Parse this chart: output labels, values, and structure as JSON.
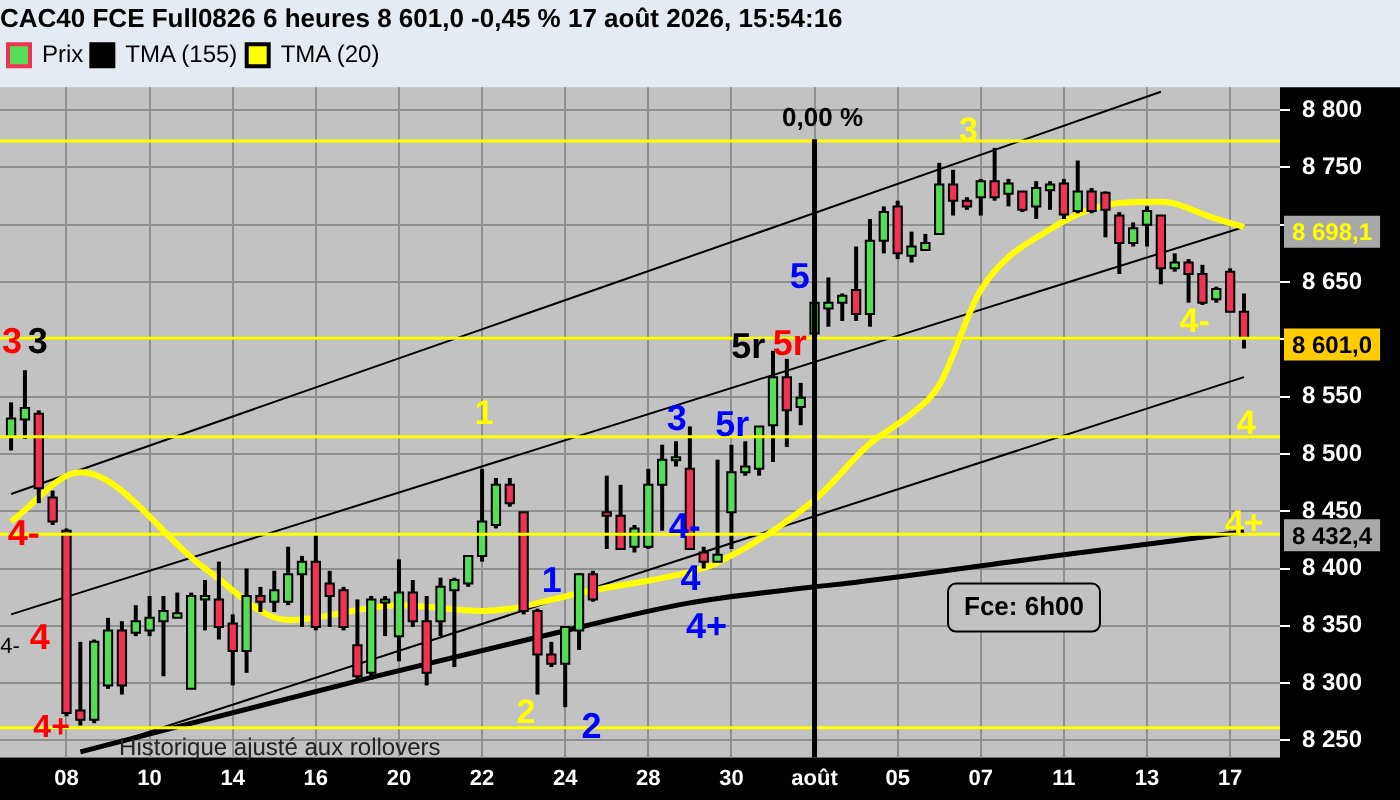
{
  "chart_data": {
    "type": "candlestick",
    "title": "CAC40 FCE Full0826 6 heures 8 601,0 -0,45 % 17 août 2026, 15:54:16",
    "categories": [
      null,
      null,
      null,
      null,
      "08",
      null,
      null,
      null,
      null,
      null,
      "10",
      null,
      null,
      null,
      null,
      null,
      "14",
      null,
      null,
      null,
      null,
      null,
      "16",
      null,
      null,
      null,
      null,
      null,
      "20",
      null,
      null,
      null,
      null,
      null,
      "22",
      null,
      null,
      null,
      null,
      null,
      "24",
      null,
      null,
      null,
      null,
      null,
      "28",
      null,
      null,
      null,
      null,
      null,
      "30",
      null,
      null,
      null,
      null,
      null,
      "août",
      null,
      null,
      null,
      null,
      null,
      "05",
      null,
      null,
      null,
      null,
      null,
      "07",
      null,
      null,
      null,
      null,
      null,
      "11",
      null,
      null,
      null,
      null,
      null,
      "13",
      null,
      null,
      null,
      null,
      null,
      "17",
      null
    ],
    "series": [
      {
        "name": "Prix",
        "ohlc": [
          [
            8515,
            8545,
            8503,
            8531
          ],
          [
            8530,
            8573,
            8513,
            8540
          ],
          [
            8535,
            8538,
            8457,
            8470
          ],
          [
            8462,
            8468,
            8438,
            8441
          ],
          [
            8433,
            8435,
            8271,
            8274
          ],
          [
            8276,
            8336,
            8263,
            8268
          ],
          [
            8268,
            8338,
            8265,
            8336
          ],
          [
            8298,
            8357,
            8295,
            8346
          ],
          [
            8346,
            8354,
            8290,
            8298
          ],
          [
            8344,
            8368,
            8341,
            8354
          ],
          [
            8346,
            8376,
            8341,
            8357
          ],
          [
            8354,
            8376,
            8306,
            8363
          ],
          [
            8357,
            8379,
            8357,
            8361
          ],
          [
            8295,
            8379,
            8295,
            8376
          ],
          [
            8373,
            8390,
            8346,
            8376
          ],
          [
            8373,
            8406,
            8338,
            8349
          ],
          [
            8352,
            8360,
            8298,
            8328
          ],
          [
            8328,
            8400,
            8309,
            8376
          ],
          [
            8376,
            8384,
            8362,
            8371
          ],
          [
            8371,
            8398,
            8362,
            8381
          ],
          [
            8371,
            8419,
            8368,
            8395
          ],
          [
            8395,
            8411,
            8349,
            8406
          ],
          [
            8406,
            8430,
            8346,
            8349
          ],
          [
            8387,
            8398,
            8349,
            8376
          ],
          [
            8381,
            8384,
            8346,
            8349
          ],
          [
            8333,
            8373,
            8303,
            8306
          ],
          [
            8309,
            8376,
            8303,
            8373
          ],
          [
            8371,
            8376,
            8341,
            8373
          ],
          [
            8341,
            8408,
            8319,
            8379
          ],
          [
            8379,
            8390,
            8349,
            8354
          ],
          [
            8354,
            8376,
            8298,
            8309
          ],
          [
            8354,
            8392,
            8341,
            8384
          ],
          [
            8381,
            8392,
            8314,
            8390
          ],
          [
            8387,
            8411,
            8384,
            8411
          ],
          [
            8411,
            8487,
            8406,
            8441
          ],
          [
            8438,
            8479,
            8435,
            8473
          ],
          [
            8473,
            8479,
            8454,
            8457
          ],
          [
            8449,
            8449,
            8360,
            8363
          ],
          [
            8363,
            8365,
            8290,
            8325
          ],
          [
            8325,
            8336,
            8314,
            8317
          ],
          [
            8317,
            8349,
            8279,
            8349
          ],
          [
            8346,
            8396,
            8329,
            8395
          ],
          [
            8395,
            8398,
            8371,
            8373
          ],
          [
            8449,
            8481,
            8417,
            8446
          ],
          [
            8446,
            8473,
            8417,
            8417
          ],
          [
            8419,
            8438,
            8414,
            8435
          ],
          [
            8419,
            8487,
            8417,
            8473
          ],
          [
            8473,
            8508,
            8433,
            8495
          ],
          [
            8495,
            8511,
            8489,
            8497
          ],
          [
            8487,
            8524,
            8417,
            8417
          ],
          [
            8414,
            8419,
            8400,
            8406
          ],
          [
            8406,
            8495,
            8406,
            8412
          ],
          [
            8449,
            8508,
            8417,
            8484
          ],
          [
            8484,
            8511,
            8481,
            8489
          ],
          [
            8487,
            8524,
            8481,
            8524
          ],
          [
            8525,
            8590,
            8493,
            8567
          ],
          [
            8567,
            8583,
            8506,
            8538
          ],
          [
            8541,
            8562,
            8525,
            8549
          ],
          [
            8605,
            8635,
            8560,
            8632
          ],
          [
            8627,
            8654,
            8611,
            8632
          ],
          [
            8632,
            8640,
            8616,
            8638
          ],
          [
            8643,
            8681,
            8616,
            8622
          ],
          [
            8622,
            8705,
            8611,
            8686
          ],
          [
            8686,
            8716,
            8675,
            8711
          ],
          [
            8716,
            8721,
            8670,
            8675
          ],
          [
            8673,
            8694,
            8667,
            8681
          ],
          [
            8678,
            8692,
            8678,
            8684
          ],
          [
            8692,
            8754,
            8692,
            8735
          ],
          [
            8735,
            8748,
            8708,
            8721
          ],
          [
            8721,
            8724,
            8713,
            8716
          ],
          [
            8724,
            8740,
            8708,
            8738
          ],
          [
            8738,
            8767,
            8721,
            8724
          ],
          [
            8727,
            8740,
            8716,
            8736
          ],
          [
            8729,
            8729,
            8711,
            8713
          ],
          [
            8716,
            8738,
            8705,
            8732
          ],
          [
            8730,
            8738,
            8713,
            8735
          ],
          [
            8736,
            8740,
            8705,
            8709
          ],
          [
            8712,
            8756,
            8710,
            8729
          ],
          [
            8729,
            8732,
            8710,
            8712
          ],
          [
            8728,
            8729,
            8689,
            8713
          ],
          [
            8708,
            8711,
            8657,
            8684
          ],
          [
            8684,
            8702,
            8681,
            8697
          ],
          [
            8700,
            8716,
            8681,
            8712
          ],
          [
            8708,
            8708,
            8648,
            8662
          ],
          [
            8662,
            8675,
            8659,
            8667
          ],
          [
            8667,
            8670,
            8632,
            8657
          ],
          [
            8657,
            8665,
            8630,
            8632
          ],
          [
            8635,
            8646,
            8632,
            8644
          ],
          [
            8659,
            8662,
            8624,
            8624
          ],
          [
            8624,
            8640,
            8592,
            8601
          ]
        ],
        "colors": [
          "#55dd55",
          "#55dd55",
          "#ee3355",
          "#ee3355",
          "#ee3355",
          "#ee3355",
          "#55dd55",
          "#55dd55",
          "#ee3355",
          "#55dd55",
          "#55dd55",
          "#55dd55",
          "#55dd55",
          "#55dd55",
          "#55dd55",
          "#ee3355",
          "#ee3355",
          "#55dd55",
          "#ee3355",
          "#55dd55",
          "#55dd55",
          "#55dd55",
          "#ee3355",
          "#ee3355",
          "#ee3355",
          "#ee3355",
          "#55dd55",
          "#55dd55",
          "#55dd55",
          "#ee3355",
          "#ee3355",
          "#55dd55",
          "#55dd55",
          "#55dd55",
          "#55dd55",
          "#55dd55",
          "#ee3355",
          "#ee3355",
          "#ee3355",
          "#ee3355",
          "#55dd55",
          "#55dd55",
          "#ee3355",
          "#ee3355",
          "#ee3355",
          "#55dd55",
          "#55dd55",
          "#55dd55",
          "#55dd55",
          "#ee3355",
          "#ee3355",
          "#55dd55",
          "#55dd55",
          "#55dd55",
          "#55dd55",
          "#55dd55",
          "#ee3355",
          "#55dd55",
          "#55dd55",
          "#55dd55",
          "#55dd55",
          "#ee3355",
          "#55dd55",
          "#55dd55",
          "#ee3355",
          "#55dd55",
          "#55dd55",
          "#55dd55",
          "#ee3355",
          "#ee3355",
          "#55dd55",
          "#ee3355",
          "#55dd55",
          "#ee3355",
          "#55dd55",
          "#55dd55",
          "#ee3355",
          "#55dd55",
          "#ee3355",
          "#ee3355",
          "#ee3355",
          "#55dd55",
          "#55dd55",
          "#ee3355",
          "#55dd55",
          "#ee3355",
          "#ee3355",
          "#55dd55",
          "#ee3355",
          "#ee3355"
        ]
      },
      {
        "name": "TMA (155)",
        "type": "line",
        "color": "#000000",
        "values": [
          null,
          null,
          null,
          null,
          null,
          8240,
          null,
          null,
          null,
          null,
          null,
          null,
          null,
          null,
          null,
          null,
          null,
          null,
          null,
          null,
          null,
          null,
          null,
          null,
          null,
          null,
          8305,
          null,
          null,
          null,
          null,
          null,
          null,
          null,
          null,
          null,
          null,
          null,
          8340,
          null,
          null,
          null,
          null,
          null,
          null,
          null,
          null,
          null,
          null,
          8370,
          null,
          null,
          null,
          null,
          null,
          null,
          null,
          null,
          8384,
          null,
          null,
          8388,
          null,
          null,
          null,
          null,
          null,
          null,
          null,
          null,
          null,
          null,
          null,
          null,
          null,
          null,
          8412,
          null,
          null,
          null,
          null,
          null,
          null,
          null,
          null,
          null,
          null,
          null,
          null,
          8432
        ]
      },
      {
        "name": "TMA (20)",
        "type": "line",
        "color": "#ffff00",
        "values": [
          8441,
          null,
          null,
          null,
          null,
          8484,
          null,
          null,
          null,
          null,
          null,
          null,
          null,
          null,
          8400,
          null,
          null,
          null,
          null,
          null,
          8355,
          null,
          null,
          null,
          null,
          null,
          null,
          null,
          8368,
          null,
          null,
          null,
          null,
          null,
          8363,
          null,
          null,
          null,
          null,
          null,
          null,
          null,
          8381,
          null,
          null,
          null,
          null,
          null,
          null,
          8397,
          null,
          8405,
          null,
          null,
          null,
          null,
          null,
          null,
          8460,
          null,
          null,
          null,
          8509,
          null,
          null,
          8535,
          null,
          8560,
          null,
          null,
          8643,
          null,
          null,
          null,
          null,
          8696,
          null,
          null,
          null,
          null,
          8719,
          null,
          null,
          8720,
          null,
          null,
          null,
          8705,
          null,
          8698
        ]
      },
      {
        "type": "line",
        "color": "#000000",
        "values": [
          8465,
          null,
          null,
          null,
          null,
          null,
          null,
          null,
          null,
          null,
          null,
          null,
          null,
          null,
          null,
          null,
          null,
          null,
          null,
          null,
          null,
          null,
          null,
          null,
          null,
          null,
          null,
          null,
          null,
          null,
          null,
          null,
          null,
          null,
          null,
          null,
          null,
          null,
          null,
          null,
          null,
          null,
          null,
          null,
          null,
          null,
          null,
          null,
          null,
          null,
          null,
          null,
          null,
          null,
          null,
          null,
          null,
          null,
          null,
          null,
          null,
          null,
          null,
          null,
          null,
          null,
          null,
          null,
          null,
          null,
          null,
          null,
          null,
          null,
          null,
          null,
          null,
          null,
          null,
          null,
          null,
          null,
          null,
          8816,
          null,
          null,
          null,
          null,
          null,
          null
        ]
      },
      {
        "type": "line",
        "color": "#000000",
        "values": [
          8360,
          null,
          null,
          null,
          null,
          null,
          null,
          null,
          null,
          null,
          null,
          null,
          null,
          null,
          null,
          null,
          null,
          null,
          null,
          null,
          null,
          null,
          null,
          null,
          null,
          null,
          null,
          null,
          null,
          null,
          null,
          null,
          null,
          null,
          null,
          null,
          null,
          null,
          null,
          null,
          null,
          null,
          null,
          null,
          null,
          null,
          null,
          null,
          null,
          null,
          null,
          null,
          null,
          null,
          null,
          null,
          null,
          null,
          null,
          null,
          null,
          null,
          null,
          null,
          null,
          null,
          null,
          null,
          null,
          null,
          null,
          null,
          null,
          null,
          null,
          null,
          null,
          null,
          null,
          null,
          null,
          null,
          null,
          null,
          null,
          null,
          null,
          null,
          null,
          8698
        ]
      },
      {
        "type": "line",
        "color": "#000000",
        "values": [
          null,
          null,
          null,
          null,
          null,
          null,
          8242,
          null,
          null,
          null,
          null,
          null,
          null,
          null,
          null,
          null,
          null,
          null,
          null,
          null,
          null,
          null,
          null,
          null,
          null,
          null,
          null,
          null,
          null,
          null,
          null,
          null,
          null,
          null,
          null,
          null,
          null,
          null,
          null,
          null,
          null,
          null,
          null,
          null,
          null,
          null,
          null,
          null,
          null,
          null,
          null,
          null,
          null,
          null,
          null,
          null,
          null,
          null,
          null,
          null,
          null,
          null,
          null,
          null,
          null,
          null,
          null,
          null,
          null,
          null,
          null,
          null,
          null,
          null,
          null,
          null,
          null,
          null,
          null,
          null,
          null,
          null,
          null,
          null,
          null,
          null,
          null,
          null,
          null,
          8567
        ]
      }
    ],
    "ylim": [
      8235,
      8820
    ],
    "yticks": [
      {
        "value": 8250,
        "label": "8 250"
      },
      {
        "value": 8300,
        "label": "8 300"
      },
      {
        "value": 8350,
        "label": "8 350"
      },
      {
        "value": 8400,
        "label": "8 400"
      },
      {
        "value": 8450,
        "label": "8 450"
      },
      {
        "value": 8500,
        "label": "8 500"
      },
      {
        "value": 8550,
        "label": "8 550"
      },
      {
        "value": 8600,
        "label": null
      },
      {
        "value": 8650,
        "label": "8 650"
      },
      {
        "value": 8700,
        "label": null
      },
      {
        "value": 8750,
        "label": "8 750"
      },
      {
        "value": 8800,
        "label": "8 800"
      }
    ],
    "ref_lines": [
      {
        "axis": "y",
        "value": 8773,
        "color": "#ffff00"
      },
      {
        "axis": "y",
        "value": 8601,
        "color": "#ffff00"
      },
      {
        "axis": "y",
        "value": 8515,
        "color": "#ffff00"
      },
      {
        "axis": "y",
        "value": 8430,
        "color": "#ffff00"
      },
      {
        "axis": "y",
        "value": 8261,
        "color": "#ffff00"
      },
      {
        "axis": "x",
        "value": "août",
        "label": "0,00 %",
        "color": "#000000"
      }
    ],
    "annotations": [
      "3",
      "3",
      "4-",
      "4",
      "4-",
      "4+",
      "1",
      "1",
      "2",
      "3",
      "5r",
      "4-",
      "4",
      "4+",
      "5",
      "5r",
      "5r",
      "Fce: 6h00",
      "Historique ajusté aux rollovers",
      "8 698,1",
      "8 601,0",
      "8 432,4",
      "3",
      "4-",
      "4",
      "4+",
      "2"
    ],
    "grid": true,
    "legend": "top left"
  }
}
